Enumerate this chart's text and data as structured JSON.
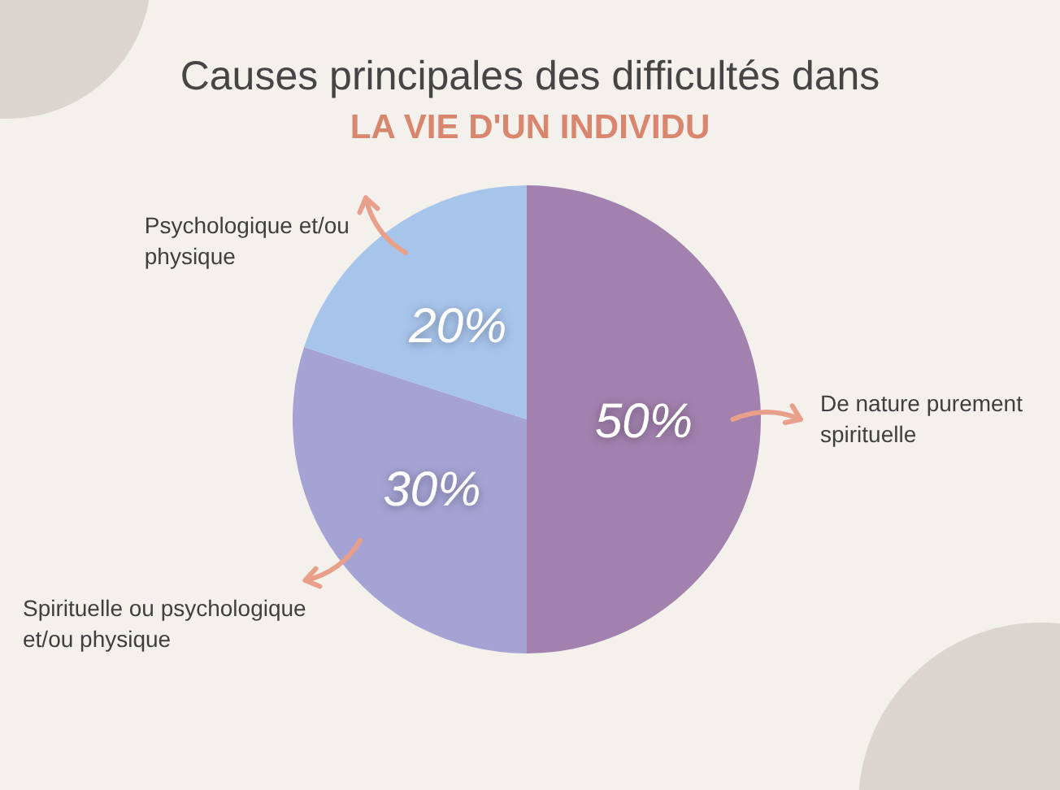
{
  "chart_data": {
    "type": "pie",
    "title": "Causes principales des difficultés dans",
    "subtitle": "LA VIE D'UN INDIVIDU",
    "categories": [
      "De nature purement spirituelle",
      "Spirituelle ou psychologique et/ou physique",
      "Psychologique et/ou physique"
    ],
    "values": [
      50,
      30,
      20
    ],
    "colors": [
      "#a281ae",
      "#a4a3d3",
      "#a7c4eb"
    ],
    "value_labels": [
      "50%",
      "30%",
      "20%"
    ]
  }
}
